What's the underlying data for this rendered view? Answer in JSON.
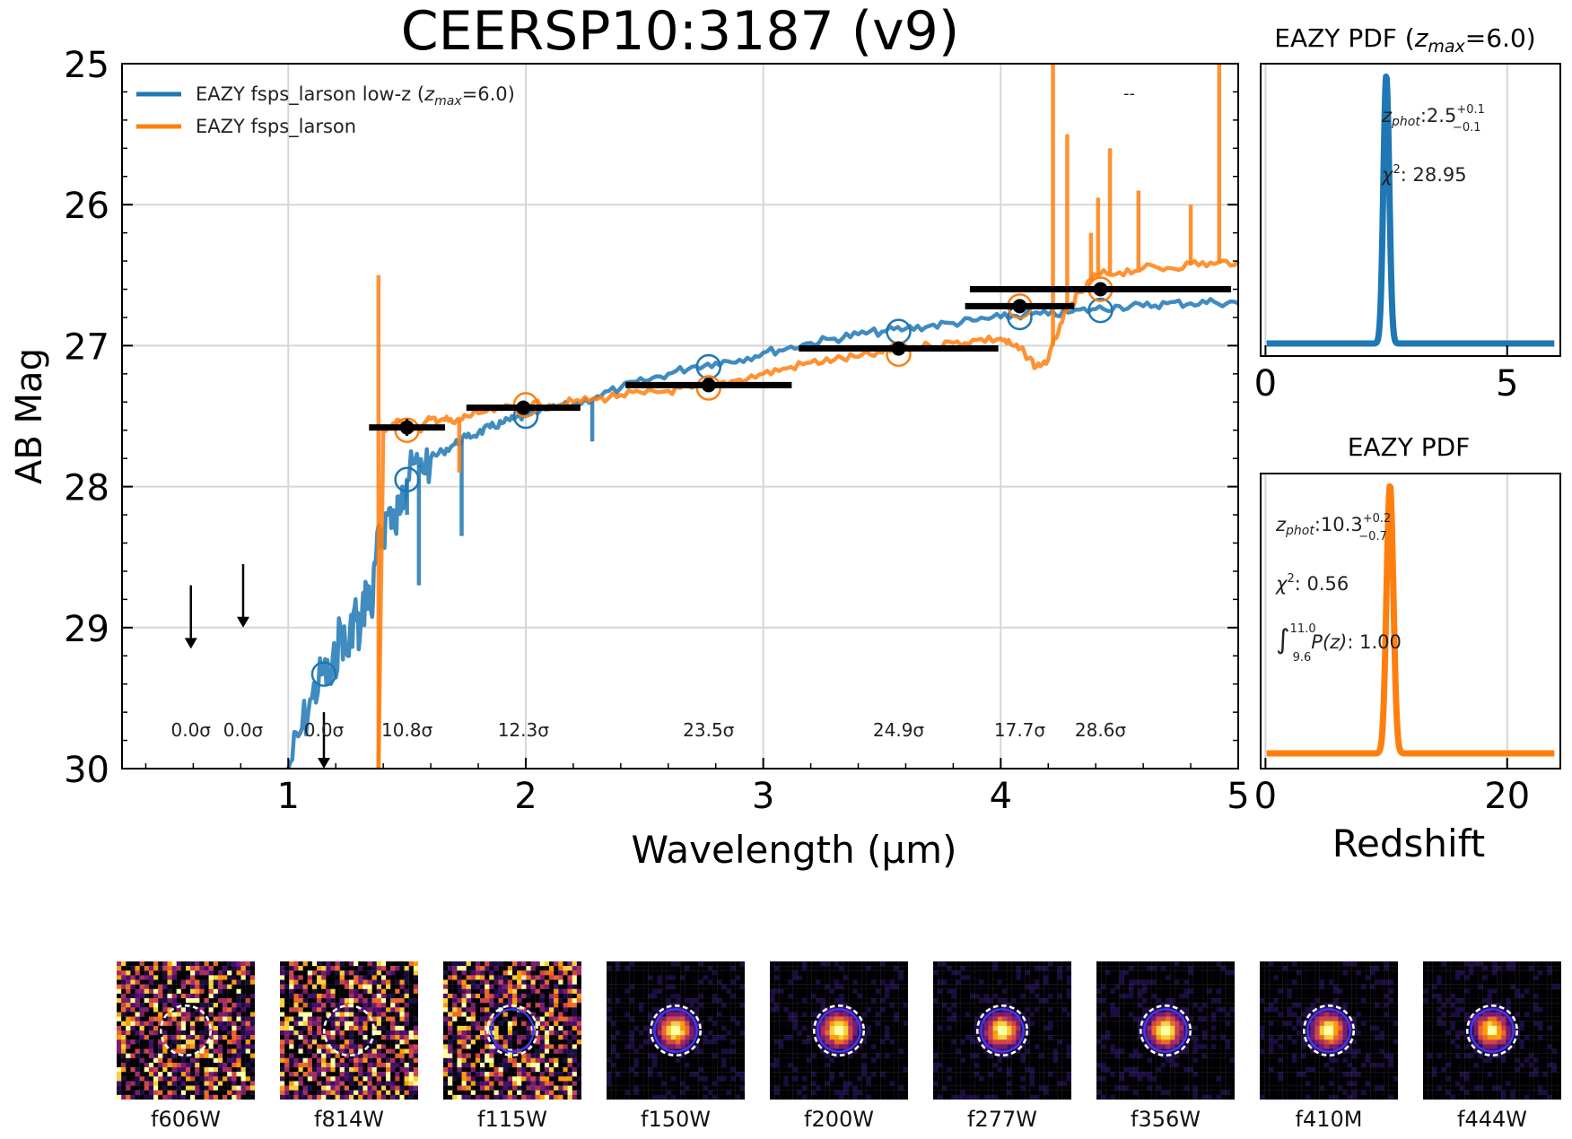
{
  "colors": {
    "low_z": "#1f77b4",
    "free": "#ff7f0e",
    "points": "#000000",
    "grid": "#d3d3d3"
  },
  "chart_data": [
    {
      "type": "line",
      "title": "CEERSP10:3187 (v9)",
      "xlabel": "Wavelength (μm)",
      "ylabel": "AB Mag",
      "xlim": [
        0.3,
        5.0
      ],
      "ylim": [
        30,
        25
      ],
      "xticks": [
        "1",
        "2",
        "3",
        "4",
        "5"
      ],
      "yticks": [
        "25",
        "26",
        "27",
        "28",
        "29",
        "30"
      ],
      "legend": {
        "placement": "top-left",
        "entries": [
          {
            "name": "EAZY fsps_larson low-z (",
            "zname": "z",
            "zsub": "max",
            "suffix": "=6.0)",
            "color": "#1f77b4"
          },
          {
            "name": "EAZY fsps_larson",
            "color": "#ff7f0e"
          }
        ]
      },
      "dash_text": "--",
      "series": [
        {
          "name": "EAZY fsps_larson low-z (zmax=6.0)",
          "color": "#1f77b4",
          "x": [
            1.0,
            1.05,
            1.1,
            1.15,
            1.18,
            1.22,
            1.25,
            1.28,
            1.3,
            1.33,
            1.35,
            1.37,
            1.4,
            1.43,
            1.45,
            1.48,
            1.5,
            1.55,
            1.6,
            1.65,
            1.7,
            1.75,
            1.8,
            1.85,
            1.9,
            1.95,
            2.0,
            2.1,
            2.2,
            2.3,
            2.4,
            2.5,
            2.6,
            2.7,
            2.8,
            2.9,
            3.0,
            3.1,
            3.2,
            3.3,
            3.4,
            3.5,
            3.6,
            3.7,
            3.8,
            3.9,
            4.0,
            4.1,
            4.2,
            4.3,
            4.4,
            4.5,
            4.6,
            4.7,
            4.8,
            4.9,
            5.0
          ],
          "y": [
            30.0,
            29.75,
            29.5,
            29.3,
            29.4,
            29.0,
            29.2,
            28.85,
            29.1,
            28.7,
            28.9,
            28.5,
            28.3,
            28.15,
            28.3,
            28.0,
            27.95,
            27.85,
            27.8,
            27.75,
            27.7,
            27.65,
            27.62,
            27.58,
            27.55,
            27.52,
            27.5,
            27.45,
            27.42,
            27.36,
            27.3,
            27.25,
            27.2,
            27.15,
            27.12,
            27.1,
            27.05,
            27.02,
            26.98,
            26.95,
            26.92,
            26.9,
            26.88,
            26.86,
            26.84,
            26.82,
            26.8,
            26.78,
            26.78,
            26.76,
            26.74,
            26.72,
            26.72,
            26.7,
            26.7,
            26.69,
            26.7
          ],
          "spikes": [
            {
              "x": 1.5,
              "y": 28.2
            },
            {
              "x": 1.55,
              "y": 28.7
            },
            {
              "x": 1.73,
              "y": 28.35
            },
            {
              "x": 2.28,
              "y": 27.68
            }
          ]
        },
        {
          "name": "EAZY fsps_larson",
          "color": "#ff7f0e",
          "x": [
            1.38,
            1.4,
            1.45,
            1.5,
            1.55,
            1.6,
            1.65,
            1.7,
            1.75,
            1.8,
            1.9,
            2.0,
            2.1,
            2.2,
            2.3,
            2.4,
            2.5,
            2.6,
            2.7,
            2.8,
            2.9,
            3.0,
            3.1,
            3.2,
            3.3,
            3.4,
            3.5,
            3.6,
            3.7,
            3.8,
            3.9,
            4.0,
            4.05,
            4.1,
            4.15,
            4.2,
            4.25,
            4.3,
            4.35,
            4.4,
            4.5,
            4.6,
            4.7,
            4.8,
            4.9,
            5.0
          ],
          "y": [
            30.0,
            27.6,
            27.55,
            27.55,
            27.6,
            27.52,
            27.52,
            27.55,
            27.5,
            27.48,
            27.45,
            27.42,
            27.42,
            27.4,
            27.38,
            27.35,
            27.34,
            27.32,
            27.3,
            27.28,
            27.24,
            27.2,
            27.16,
            27.12,
            27.1,
            27.08,
            27.05,
            27.02,
            27.0,
            26.98,
            26.96,
            26.95,
            27.0,
            27.05,
            27.15,
            27.1,
            26.85,
            26.7,
            26.6,
            26.5,
            26.48,
            26.45,
            26.45,
            26.42,
            26.42,
            26.4
          ],
          "spikes": [
            {
              "x": 1.38,
              "y": 26.5
            },
            {
              "x": 1.72,
              "y": 27.9
            },
            {
              "x": 4.22,
              "y": 25.0
            },
            {
              "x": 4.28,
              "y": 25.5
            },
            {
              "x": 4.38,
              "y": 26.2
            },
            {
              "x": 4.41,
              "y": 25.95
            },
            {
              "x": 4.46,
              "y": 25.6
            },
            {
              "x": 4.58,
              "y": 25.9
            },
            {
              "x": 4.8,
              "y": 26.0
            },
            {
              "x": 4.92,
              "y": 25.0
            }
          ]
        }
      ],
      "model_points_low_z": [
        {
          "x": 1.15,
          "y": 29.33
        },
        {
          "x": 1.5,
          "y": 27.95
        },
        {
          "x": 2.0,
          "y": 27.5
        },
        {
          "x": 2.77,
          "y": 27.15
        },
        {
          "x": 3.57,
          "y": 26.9
        },
        {
          "x": 4.08,
          "y": 26.8
        },
        {
          "x": 4.42,
          "y": 26.75
        }
      ],
      "model_points_free": [
        {
          "x": 1.5,
          "y": 27.6
        },
        {
          "x": 2.0,
          "y": 27.42
        },
        {
          "x": 2.77,
          "y": 27.3
        },
        {
          "x": 3.57,
          "y": 27.06
        },
        {
          "x": 4.08,
          "y": 26.72
        },
        {
          "x": 4.42,
          "y": 26.6
        }
      ],
      "photometry": [
        {
          "x": 1.5,
          "y": 27.58,
          "xerr": 0.16,
          "yerr": 0.06
        },
        {
          "x": 1.99,
          "y": 27.44,
          "xerr": 0.24,
          "yerr": 0.05
        },
        {
          "x": 2.77,
          "y": 27.28,
          "xerr": 0.35,
          "yerr": 0.03
        },
        {
          "x": 3.57,
          "y": 27.02,
          "xerr": 0.42,
          "yerr": 0.03
        },
        {
          "x": 4.08,
          "y": 26.72,
          "xerr": 0.23,
          "yerr": 0.04
        },
        {
          "x": 4.42,
          "y": 26.6,
          "xerr": 0.55,
          "yerr": 0.03
        }
      ],
      "upper_limits": [
        {
          "x": 0.59,
          "y_top": 28.7,
          "y_bottom": 29.15
        },
        {
          "x": 0.81,
          "y_top": 28.55,
          "y_bottom": 29.0
        },
        {
          "x": 1.15,
          "y_top": 29.6,
          "y_bottom": 30.0
        }
      ],
      "snr_labels": [
        {
          "x": 0.59,
          "text": "0.0σ"
        },
        {
          "x": 0.81,
          "text": "0.0σ"
        },
        {
          "x": 1.15,
          "text": "0.0σ"
        },
        {
          "x": 1.5,
          "text": "10.8σ"
        },
        {
          "x": 1.99,
          "text": "12.3σ"
        },
        {
          "x": 2.77,
          "text": "23.5σ"
        },
        {
          "x": 3.57,
          "text": "24.9σ"
        },
        {
          "x": 4.08,
          "text": "17.7σ"
        },
        {
          "x": 4.42,
          "text": "28.6σ"
        }
      ]
    },
    {
      "type": "line",
      "title": "EAZY PDF (",
      "title_z": "z",
      "title_sub": "max",
      "title_suffix": "=6.0)",
      "xlim": [
        -0.1,
        6.1
      ],
      "xticks": [
        "0",
        "5"
      ],
      "color": "#1f77b4",
      "peak": 2.5,
      "width": 0.06,
      "zphot_label": "z",
      "zphot_sub": "phot",
      "zphot_value": ":2.5",
      "zphot_up": "+0.1",
      "zphot_down": "−0.1",
      "chi2_label": "χ",
      "chi2_sup": "2",
      "chi2_value": ": 28.95"
    },
    {
      "type": "line",
      "title": "EAZY PDF",
      "xlabel": "Redshift",
      "xlim": [
        -0.4,
        24.4
      ],
      "xticks": [
        "0",
        "20"
      ],
      "color": "#ff7f0e",
      "peak": 10.3,
      "width": 0.28,
      "zphot_label": "z",
      "zphot_sub": "phot",
      "zphot_value": ":10.3",
      "zphot_up": "+0.2",
      "zphot_down": "−0.7",
      "chi2_label": "χ",
      "chi2_sup": "2",
      "chi2_value": ": 0.56",
      "int_symbol": "∫",
      "int_upper": "11.0",
      "int_lower": "9.6",
      "int_body": "P(z)",
      "int_value": ": 1.00"
    }
  ],
  "stamps": [
    {
      "label": "f606W",
      "kind": "noise",
      "ring": "white"
    },
    {
      "label": "f814W",
      "kind": "noise",
      "ring": "white"
    },
    {
      "label": "f115W",
      "kind": "noise",
      "ring": "blue"
    },
    {
      "label": "f150W",
      "kind": "source",
      "ring": "blue"
    },
    {
      "label": "f200W",
      "kind": "source",
      "ring": "blue"
    },
    {
      "label": "f277W",
      "kind": "source",
      "ring": "blue"
    },
    {
      "label": "f356W",
      "kind": "source",
      "ring": "blue"
    },
    {
      "label": "f410M",
      "kind": "source",
      "ring": "blue"
    },
    {
      "label": "f444W",
      "kind": "source",
      "ring": "blue"
    }
  ]
}
